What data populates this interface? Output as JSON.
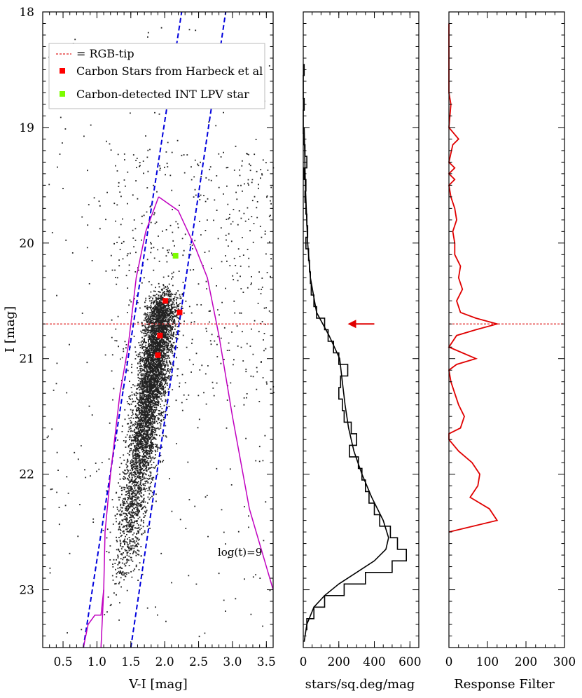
{
  "chart_data": [
    {
      "type": "scatter",
      "panel": "cmd",
      "xlabel": "V-I [mag]",
      "ylabel": "I [mag]",
      "xlim": [
        0.2,
        3.6
      ],
      "ylim": [
        23.5,
        18.0
      ],
      "y_inverted": true,
      "xticks": [
        "0.5",
        "1.0",
        "1.5",
        "2.0",
        "2.5",
        "3.0",
        "3.5"
      ],
      "yticks": [
        "18",
        "19",
        "20",
        "21",
        "22",
        "23"
      ],
      "rgb_tip": 20.7,
      "legend": {
        "position": "top-left",
        "entries": [
          {
            "label": "= RGB-tip",
            "color": "#e02020",
            "style": "dashed-line"
          },
          {
            "label": "Carbon Stars from Harbeck et al",
            "color": "#ff0000",
            "style": "square"
          },
          {
            "label": "Carbon-detected INT LPV star",
            "color": "#7cfc00",
            "style": "square"
          }
        ]
      },
      "annotation": "log(t)=9",
      "carbon_stars": [
        {
          "x": 2.01,
          "y": 20.5
        },
        {
          "x": 2.22,
          "y": 20.6
        },
        {
          "x": 1.93,
          "y": 20.8
        },
        {
          "x": 1.9,
          "y": 20.97
        }
      ],
      "lpv_star": {
        "x": 2.16,
        "y": 20.11
      },
      "selection_box": {
        "color": "#0000dd",
        "left_edge": [
          [
            0.8,
            23.5
          ],
          [
            2.25,
            18.0
          ]
        ],
        "right_edge": [
          [
            1.5,
            23.5
          ],
          [
            2.9,
            18.0
          ]
        ]
      },
      "isochrone": {
        "color": "#c000c0",
        "left_branch": [
          [
            0.8,
            23.5
          ],
          [
            0.87,
            23.3
          ],
          [
            0.97,
            23.22
          ],
          [
            1.06,
            23.22
          ],
          [
            1.1,
            23.0
          ],
          [
            1.12,
            22.5
          ],
          [
            1.2,
            22.0
          ],
          [
            1.34,
            21.3
          ],
          [
            1.46,
            20.9
          ],
          [
            1.58,
            20.3
          ],
          [
            1.72,
            19.9
          ],
          [
            1.91,
            19.6
          ]
        ],
        "right_branch": [
          [
            1.91,
            19.6
          ],
          [
            2.2,
            19.72
          ],
          [
            2.46,
            20.05
          ],
          [
            2.63,
            20.3
          ],
          [
            2.8,
            20.8
          ],
          [
            3.0,
            21.5
          ],
          [
            3.25,
            22.3
          ],
          [
            3.6,
            23.0
          ]
        ],
        "lower_branch": [
          [
            1.06,
            23.5
          ],
          [
            1.1,
            23.0
          ]
        ]
      },
      "field_stars_note": "several thousand black points"
    },
    {
      "type": "line",
      "panel": "luminosity-function",
      "xlabel": "stars/sq.deg/mag",
      "xlim": [
        0,
        650
      ],
      "xticks": [
        "0",
        "200",
        "400",
        "600"
      ],
      "ylim": [
        23.5,
        18.0
      ],
      "arrow_at": {
        "x": 250,
        "y": 20.7
      },
      "histogram_y": [
        18.5,
        18.6,
        18.7,
        18.8,
        18.9,
        19.0,
        19.1,
        19.2,
        19.3,
        19.4,
        19.5,
        19.6,
        19.7,
        19.8,
        19.9,
        20.0,
        20.1,
        20.2,
        20.3,
        20.4,
        20.5,
        20.6,
        20.7,
        20.8,
        20.9,
        21.0,
        21.1,
        21.2,
        21.3,
        21.4,
        21.5,
        21.6,
        21.7,
        21.8,
        21.9,
        22.0,
        22.1,
        22.2,
        22.3,
        22.4,
        22.5,
        22.6,
        22.7,
        22.8,
        22.9,
        23.0,
        23.1,
        23.2,
        23.3
      ],
      "histogram_values": [
        5,
        0,
        0,
        5,
        0,
        0,
        5,
        10,
        20,
        5,
        15,
        10,
        15,
        20,
        25,
        15,
        30,
        35,
        40,
        45,
        60,
        75,
        120,
        140,
        170,
        200,
        250,
        210,
        200,
        220,
        230,
        270,
        300,
        260,
        310,
        330,
        350,
        370,
        400,
        430,
        490,
        530,
        580,
        500,
        350,
        230,
        120,
        60,
        20
      ],
      "smooth_y": [
        19.0,
        19.5,
        20.0,
        20.3,
        20.6,
        20.8,
        21.0,
        21.2,
        21.4,
        21.6,
        21.8,
        22.0,
        22.2,
        22.4,
        22.55,
        22.65,
        22.75,
        22.85,
        22.95,
        23.05,
        23.15,
        23.3,
        23.45
      ],
      "smooth_values": [
        5,
        12,
        25,
        40,
        75,
        145,
        205,
        220,
        235,
        255,
        285,
        330,
        385,
        450,
        480,
        465,
        400,
        300,
        200,
        120,
        60,
        20,
        5
      ]
    },
    {
      "type": "line",
      "panel": "response-filter",
      "xlabel": "Response Filter",
      "xlim": [
        0,
        300
      ],
      "xticks": [
        "0",
        "100",
        "200",
        "300"
      ],
      "ylim": [
        23.5,
        18.0
      ],
      "line_color": "#e00000",
      "y": [
        18.1,
        18.7,
        18.8,
        19.0,
        19.1,
        19.15,
        19.3,
        19.35,
        19.4,
        19.45,
        19.5,
        19.6,
        19.7,
        19.8,
        19.9,
        20.0,
        20.1,
        20.2,
        20.3,
        20.4,
        20.5,
        20.6,
        20.65,
        20.7,
        20.75,
        20.8,
        20.9,
        20.95,
        21.0,
        21.05,
        21.1,
        21.2,
        21.3,
        21.4,
        21.5,
        21.6,
        21.65,
        21.7,
        21.8,
        21.9,
        22.0,
        22.1,
        22.2,
        22.3,
        22.4,
        22.5
      ],
      "values": [
        0,
        0,
        5,
        0,
        25,
        10,
        0,
        15,
        0,
        15,
        0,
        5,
        15,
        20,
        10,
        15,
        15,
        30,
        25,
        35,
        20,
        30,
        70,
        125,
        70,
        20,
        0,
        35,
        70,
        20,
        0,
        5,
        15,
        25,
        40,
        30,
        0,
        0,
        25,
        60,
        80,
        75,
        55,
        105,
        125,
        0
      ]
    }
  ]
}
